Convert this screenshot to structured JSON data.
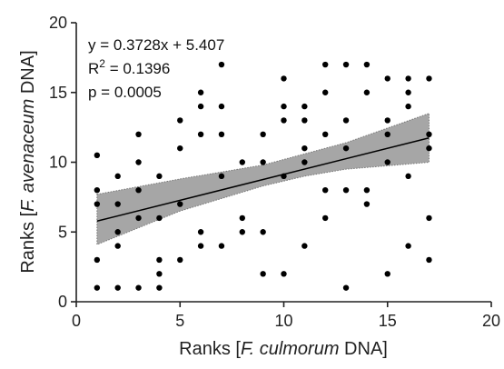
{
  "chart_data": {
    "type": "scatter",
    "xlabel": {
      "prefix": "Ranks [",
      "species": "F. culmorum",
      "suffix": " DNA]"
    },
    "ylabel": {
      "prefix": "Ranks [",
      "species": "F. avenaceum",
      "suffix": " DNA]"
    },
    "xlim": [
      0,
      20
    ],
    "ylim": [
      0,
      20
    ],
    "xticks": [
      0,
      5,
      10,
      15,
      20
    ],
    "yticks": [
      0,
      5,
      10,
      15,
      20
    ],
    "grid": false,
    "annotations": {
      "equation": "y = 0.3728x + 5.407",
      "r2_label": "R",
      "r2_sup": "2",
      "r2_value": " = 0.1396",
      "p_value": "p = 0.0005"
    },
    "regression": {
      "slope": 0.3728,
      "intercept": 5.407,
      "x_range": [
        1,
        17
      ]
    },
    "confidence_band": {
      "x": [
        1,
        5,
        9,
        11,
        13,
        17
      ],
      "lower": [
        4.1,
        6.5,
        8.3,
        9.0,
        9.5,
        10.0
      ],
      "upper": [
        7.7,
        8.8,
        9.8,
        10.6,
        11.4,
        13.5
      ]
    },
    "points": [
      [
        1,
        10.5
      ],
      [
        1,
        8
      ],
      [
        1,
        7
      ],
      [
        1,
        3
      ],
      [
        1,
        1
      ],
      [
        2,
        9
      ],
      [
        2,
        7
      ],
      [
        2,
        5
      ],
      [
        2,
        4
      ],
      [
        2,
        1
      ],
      [
        3,
        12
      ],
      [
        3,
        10
      ],
      [
        3,
        8
      ],
      [
        3,
        6
      ],
      [
        3,
        1
      ],
      [
        4,
        9
      ],
      [
        4,
        6
      ],
      [
        4,
        3
      ],
      [
        4,
        2
      ],
      [
        4,
        1
      ],
      [
        5,
        13
      ],
      [
        5,
        11
      ],
      [
        5,
        7
      ],
      [
        5,
        3
      ],
      [
        6,
        15
      ],
      [
        6,
        14
      ],
      [
        6,
        12
      ],
      [
        6,
        5
      ],
      [
        6,
        4
      ],
      [
        7,
        17
      ],
      [
        7,
        14
      ],
      [
        7,
        12
      ],
      [
        7,
        9
      ],
      [
        7,
        4
      ],
      [
        8,
        10
      ],
      [
        8,
        6
      ],
      [
        8,
        5
      ],
      [
        9,
        12
      ],
      [
        9,
        10
      ],
      [
        9,
        5
      ],
      [
        9,
        2
      ],
      [
        10,
        16
      ],
      [
        10,
        14
      ],
      [
        10,
        13
      ],
      [
        10,
        9
      ],
      [
        10,
        2
      ],
      [
        11,
        14
      ],
      [
        11,
        13
      ],
      [
        11,
        11
      ],
      [
        11,
        10
      ],
      [
        11,
        4
      ],
      [
        12,
        17
      ],
      [
        12,
        15
      ],
      [
        12,
        12
      ],
      [
        12,
        8
      ],
      [
        12,
        6
      ],
      [
        13,
        17
      ],
      [
        13,
        13
      ],
      [
        13,
        11
      ],
      [
        13,
        8
      ],
      [
        13,
        1
      ],
      [
        14,
        17
      ],
      [
        14,
        15
      ],
      [
        14,
        8
      ],
      [
        14,
        7
      ],
      [
        15,
        16
      ],
      [
        15,
        13
      ],
      [
        15,
        12
      ],
      [
        15,
        10
      ],
      [
        15,
        2
      ],
      [
        16,
        16
      ],
      [
        16,
        15
      ],
      [
        16,
        14
      ],
      [
        16,
        9
      ],
      [
        16,
        4
      ],
      [
        17,
        16
      ],
      [
        17,
        12
      ],
      [
        17,
        11
      ],
      [
        17,
        6
      ],
      [
        17,
        3
      ]
    ],
    "colors": {
      "points": "#000000",
      "band": "#a6a6a6",
      "line": "#000000",
      "axis": "#222222"
    }
  }
}
